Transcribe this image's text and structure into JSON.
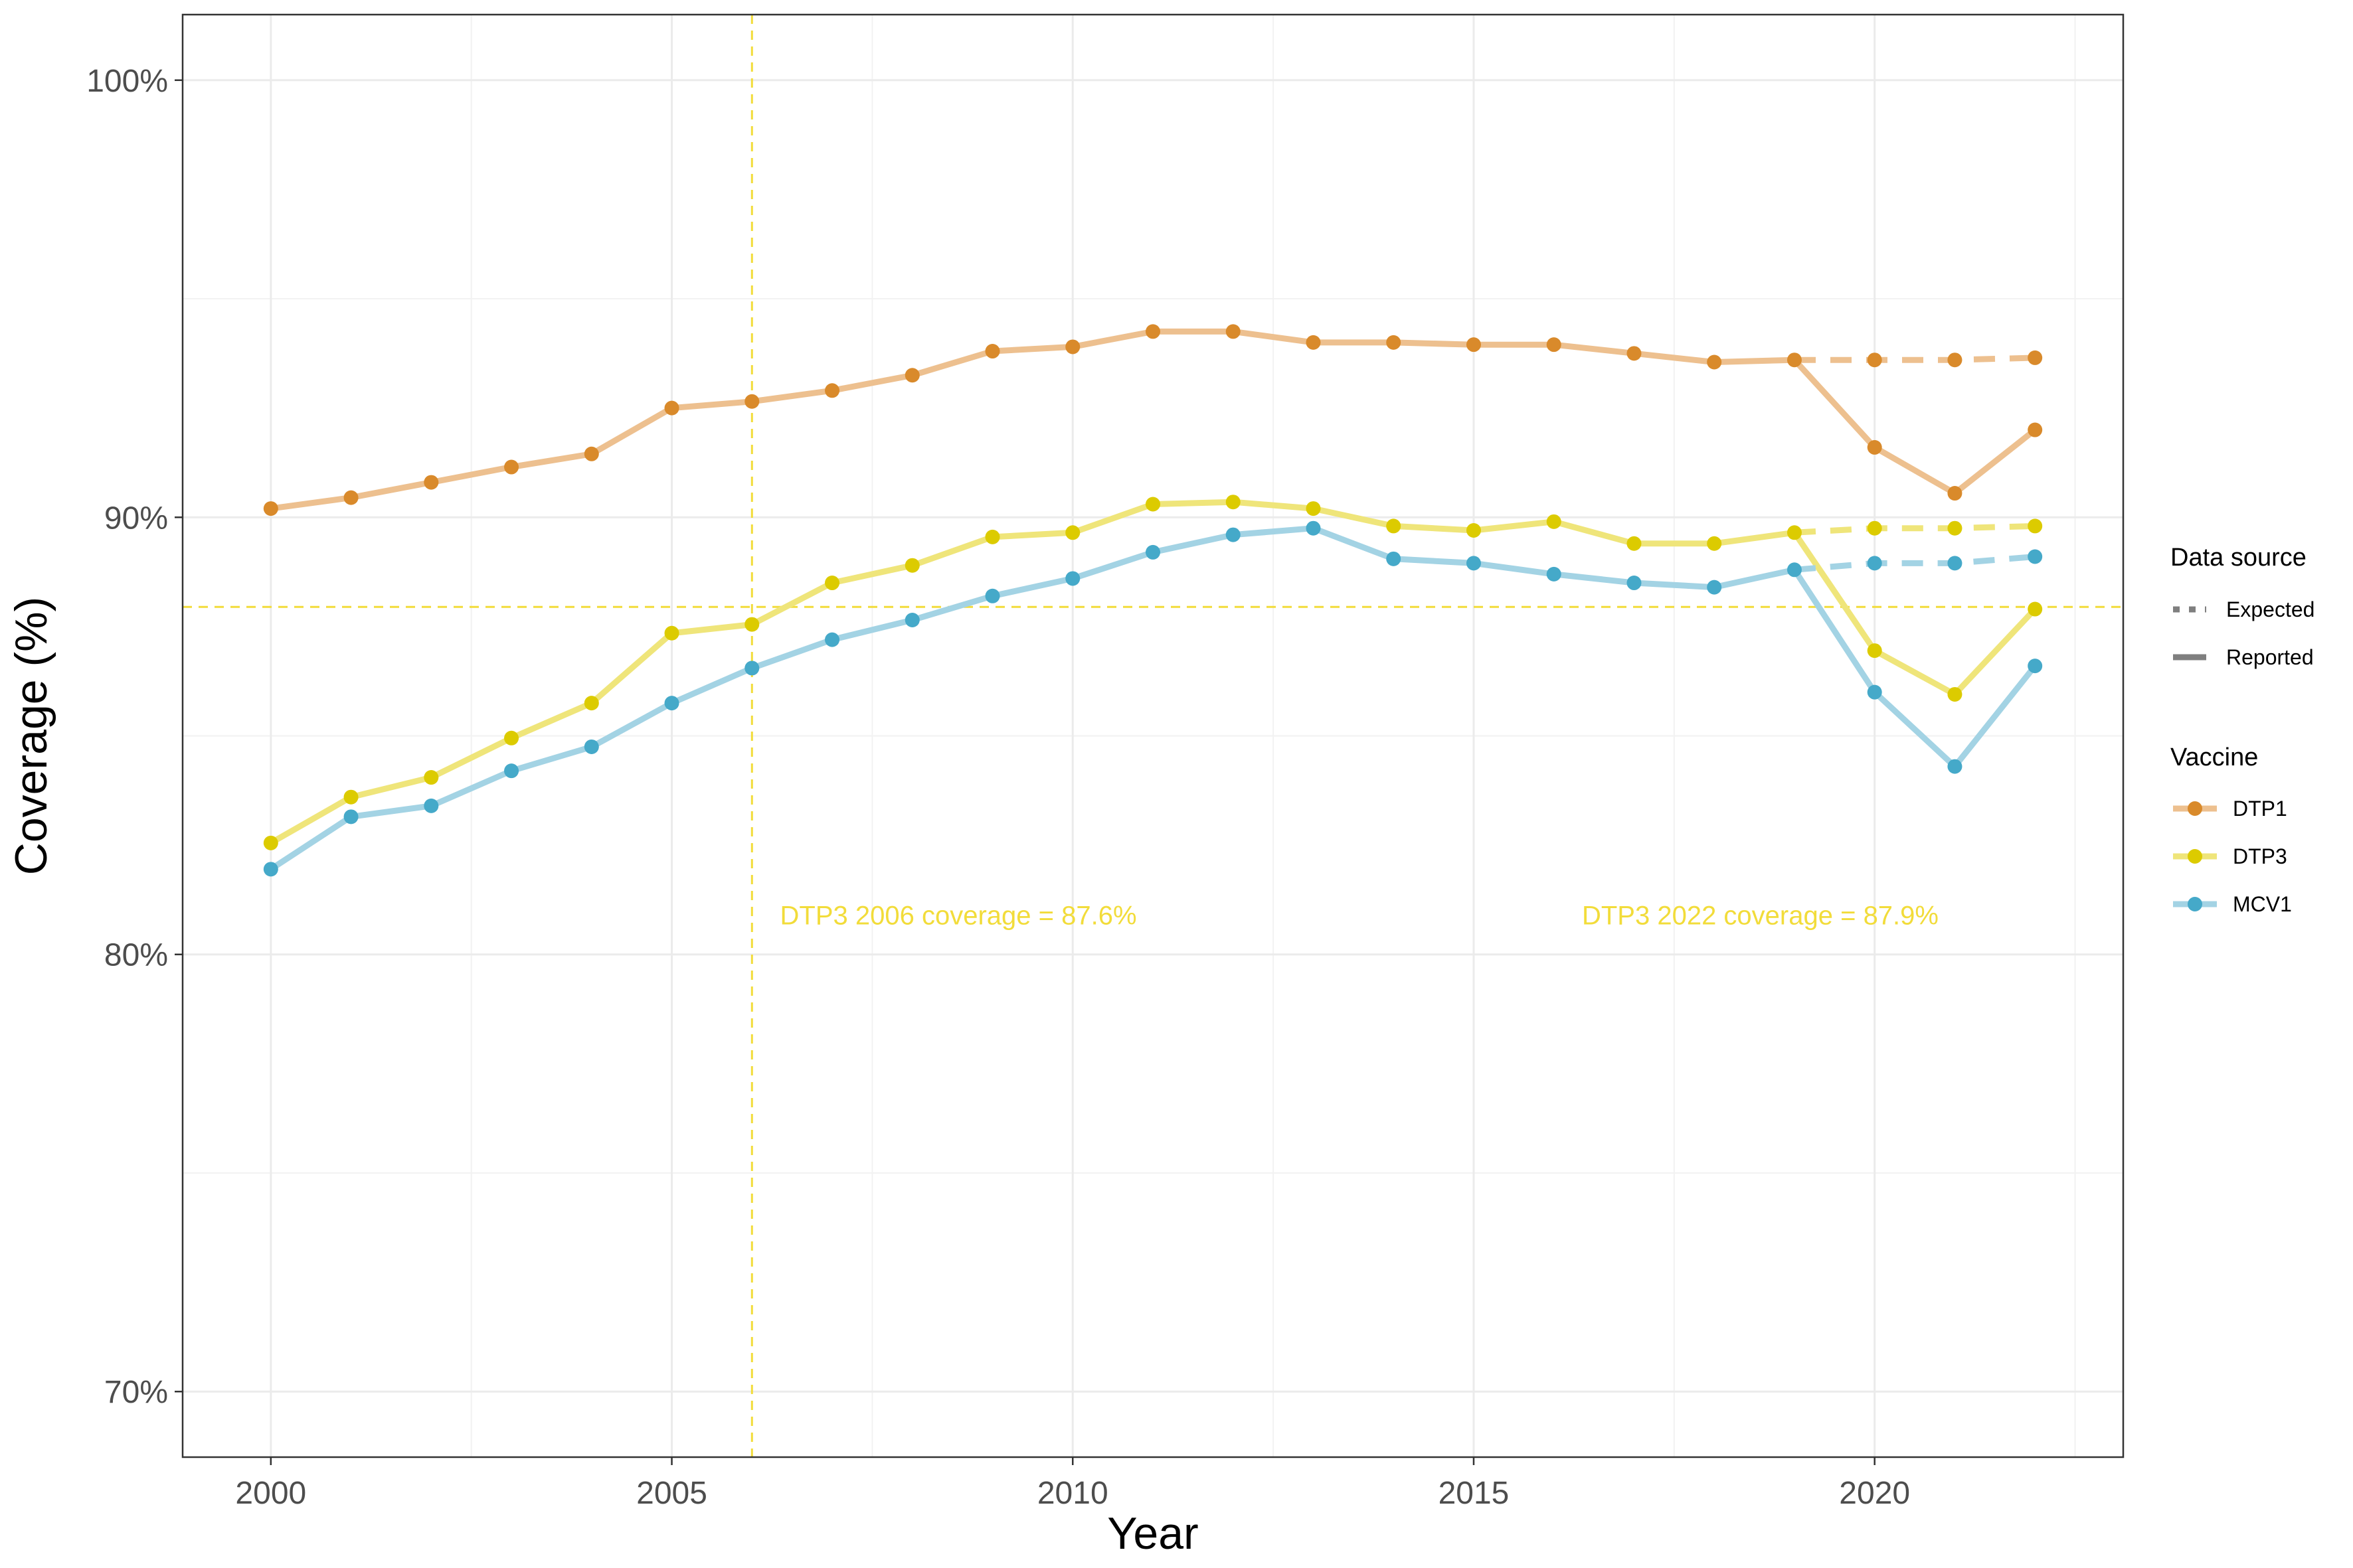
{
  "chart_data": {
    "type": "line",
    "title": "",
    "xlabel": "Year",
    "ylabel": "Coverage (%)",
    "xlim": [
      1998.9,
      2023.1
    ],
    "ylim": [
      68.5,
      101.5
    ],
    "x_ticks": [
      2000,
      2005,
      2010,
      2015,
      2020
    ],
    "x_tick_labels": [
      "2000",
      "2005",
      "2010",
      "2015",
      "2020"
    ],
    "y_ticks": [
      70,
      80,
      90,
      100
    ],
    "y_tick_labels": [
      "70%",
      "80%",
      "90%",
      "100%"
    ],
    "grid": true,
    "legend_position": "right",
    "legends": {
      "data_source": {
        "title": "Data source",
        "items": [
          {
            "label": "Expected",
            "linetype": "dashed"
          },
          {
            "label": "Reported",
            "linetype": "solid"
          }
        ]
      },
      "vaccine": {
        "title": "Vaccine",
        "items": [
          {
            "label": "DTP1",
            "color": "#d98a2b"
          },
          {
            "label": "DTP3",
            "color": "#dccb00"
          },
          {
            "label": "MCV1",
            "color": "#45a9c9"
          }
        ]
      }
    },
    "series": [
      {
        "name": "DTP1",
        "color": "#d98a2b",
        "line_color": "#edc08f",
        "reported": {
          "x": [
            2000,
            2001,
            2002,
            2003,
            2004,
            2005,
            2006,
            2007,
            2008,
            2009,
            2010,
            2011,
            2012,
            2013,
            2014,
            2015,
            2016,
            2017,
            2018,
            2019,
            2020,
            2021,
            2022
          ],
          "y": [
            90.2,
            90.45,
            90.8,
            91.15,
            91.45,
            92.5,
            92.65,
            92.9,
            93.25,
            93.8,
            93.9,
            94.25,
            94.25,
            94.0,
            94.0,
            93.95,
            93.95,
            93.75,
            93.55,
            93.6,
            91.6,
            90.55,
            92.0
          ]
        },
        "expected": {
          "x": [
            2019,
            2020,
            2021,
            2022
          ],
          "y": [
            93.6,
            93.6,
            93.6,
            93.65
          ]
        }
      },
      {
        "name": "DTP3",
        "color": "#dccb00",
        "line_color": "#efe57a",
        "reported": {
          "x": [
            2000,
            2001,
            2002,
            2003,
            2004,
            2005,
            2006,
            2007,
            2008,
            2009,
            2010,
            2011,
            2012,
            2013,
            2014,
            2015,
            2016,
            2017,
            2018,
            2019,
            2020,
            2021,
            2022
          ],
          "y": [
            82.55,
            83.6,
            84.05,
            84.95,
            85.75,
            87.35,
            87.55,
            88.5,
            88.9,
            89.55,
            89.65,
            90.3,
            90.35,
            90.2,
            89.8,
            89.7,
            89.9,
            89.4,
            89.4,
            89.65,
            86.95,
            85.95,
            87.9
          ]
        },
        "expected": {
          "x": [
            2019,
            2020,
            2021,
            2022
          ],
          "y": [
            89.65,
            89.75,
            89.75,
            89.8
          ]
        }
      },
      {
        "name": "MCV1",
        "color": "#45a9c9",
        "line_color": "#a3d3e4",
        "reported": {
          "x": [
            2000,
            2001,
            2002,
            2003,
            2004,
            2005,
            2006,
            2007,
            2008,
            2009,
            2010,
            2011,
            2012,
            2013,
            2014,
            2015,
            2016,
            2017,
            2018,
            2019,
            2020,
            2021,
            2022
          ],
          "y": [
            81.95,
            83.15,
            83.4,
            84.2,
            84.75,
            85.75,
            86.55,
            87.2,
            87.65,
            88.2,
            88.6,
            89.2,
            89.6,
            89.75,
            89.05,
            88.95,
            88.7,
            88.5,
            88.4,
            88.8,
            86.0,
            84.3,
            86.6
          ]
        },
        "expected": {
          "x": [
            2019,
            2020,
            2021,
            2022
          ],
          "y": [
            88.8,
            88.95,
            88.95,
            89.1
          ]
        }
      }
    ],
    "reference_lines": {
      "color": "#f2dc3a",
      "vertical_x": 2006,
      "horizontal_y": 87.95
    },
    "annotations": [
      {
        "text": "DTP3 2006 coverage = 87.6%",
        "x": 2006.35,
        "y": 80.9,
        "color": "#f2dc3a"
      },
      {
        "text": "DTP3 2022 coverage = 87.9%",
        "x": 2016.35,
        "y": 80.9,
        "color": "#f2dc3a"
      }
    ]
  }
}
